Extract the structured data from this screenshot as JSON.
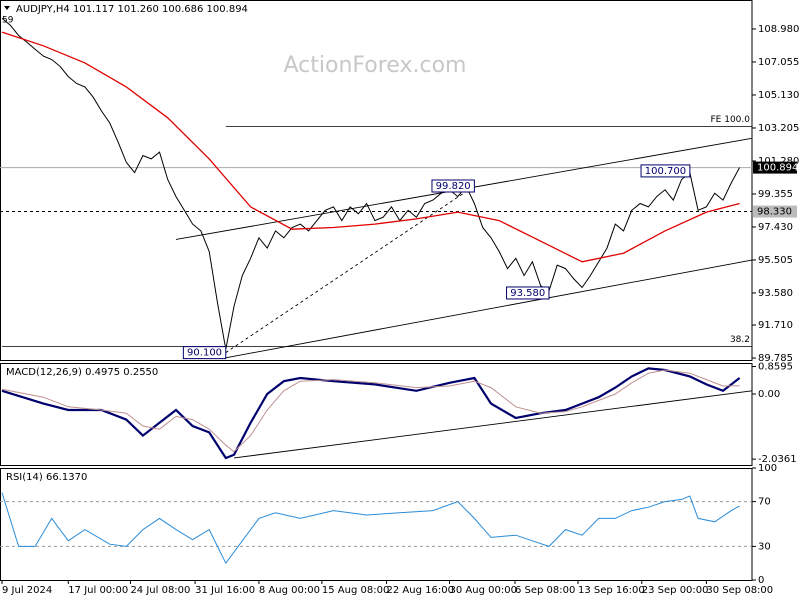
{
  "chart_data": [
    {
      "type": "line",
      "title": "AUDJPY,H4  101.117 101.260 100.686 100.894",
      "watermark": "ActionForex.com",
      "corner_tag": "59",
      "xlim": [
        0,
        90.5
      ],
      "ylim": [
        89.67,
        110.67
      ],
      "yticks": [
        {
          "value": 108.98,
          "label": "108.980"
        },
        107.055,
        {
          "value": 105.13,
          "label": "105.130"
        },
        103.205,
        {
          "value": 101.28,
          "label": "101.280"
        },
        99.355,
        {
          "value": 97.43,
          "label": "97.430"
        },
        95.505,
        {
          "value": 93.58,
          "label": "93.580"
        },
        {
          "value": 91.71,
          "label": "91.710"
        },
        89.785
      ],
      "series": [
        {
          "name": "AUDJPY",
          "color": "#000000",
          "values": [
            109.6,
            109.2,
            108.6,
            108.2,
            107.8,
            107.4,
            107.2,
            106.8,
            106.2,
            105.8,
            105.6,
            105.0,
            104.2,
            103.5,
            102.4,
            101.2,
            100.6,
            101.6,
            101.4,
            101.8,
            100.2,
            99.2,
            98.4,
            97.6,
            97.2,
            96.0,
            93.0,
            90.3,
            92.8,
            94.6,
            95.6,
            96.8,
            96.2,
            97.2,
            96.8,
            97.4,
            97.6,
            97.2,
            97.8,
            98.4,
            98.6,
            97.8,
            98.6,
            98.2,
            98.8,
            97.8,
            98.0,
            98.6,
            97.8,
            98.4,
            98.0,
            98.8,
            99.0,
            99.4,
            99.6,
            99.2,
            99.8,
            98.8,
            97.4,
            96.8,
            96.0,
            95.0,
            95.6,
            94.6,
            95.4,
            94.0,
            93.7,
            95.2,
            95.0,
            94.4,
            93.9,
            94.6,
            95.4,
            96.2,
            97.6,
            97.2,
            98.4,
            98.8,
            98.6,
            99.2,
            99.6,
            99.0,
            100.2,
            100.6,
            98.4,
            98.6,
            99.4,
            99.0,
            100.0,
            100.9
          ]
        },
        {
          "name": "MA",
          "color": "#e00000",
          "x": [
            0,
            5,
            10,
            15,
            20,
            25,
            30,
            35,
            40,
            45,
            50,
            55,
            60,
            65,
            70,
            75,
            80,
            85,
            89
          ],
          "values": [
            108.8,
            108.0,
            107.0,
            105.6,
            103.8,
            101.4,
            98.6,
            97.3,
            97.4,
            97.6,
            97.9,
            98.3,
            97.8,
            96.6,
            95.4,
            95.9,
            97.2,
            98.3,
            98.8
          ]
        }
      ],
      "trendlines": [
        {
          "x": [
            21,
            90.5
          ],
          "y": [
            96.7,
            102.6
          ]
        },
        {
          "x": [
            27,
            90.5
          ],
          "y": [
            89.8,
            95.5
          ]
        },
        {
          "x": [
            27,
            57
          ],
          "y": [
            90.1,
            99.82
          ],
          "dashed": true
        }
      ],
      "levels": [
        {
          "label": "FE 100.0",
          "value": 103.3,
          "x": [
            27,
            90.5
          ]
        },
        {
          "label": "38.2",
          "value": 90.45,
          "x": [
            0,
            90.5
          ]
        }
      ],
      "price_tags": [
        {
          "value": 100.894,
          "dashed": false
        },
        {
          "value": {
            "value": 98.33,
            "label": "98.330"
          },
          "dashed": true
        }
      ],
      "annotations": [
        {
          "label": "90.100",
          "value": 90.1,
          "x": 27
        },
        {
          "label": "99.820",
          "value": 99.82,
          "x": 57
        },
        {
          "label": "93.580",
          "value": 93.58,
          "x": 66
        },
        {
          "label": "100.700",
          "value": 100.7,
          "x": 83
        }
      ]
    },
    {
      "type": "line",
      "title": "MACD(12,26,9) 0.4975 0.2550",
      "xlim": [
        0,
        90.5
      ],
      "ylim": [
        -2.22,
        0.97
      ],
      "yticks": [
        0.8595,
        {
          "value": 0,
          "label": "0.00"
        },
        -2.0361
      ],
      "series": [
        {
          "name": "MACD",
          "color": "#00006e",
          "x": [
            0,
            5,
            8,
            12,
            15,
            17,
            19,
            21,
            23,
            25,
            27,
            28,
            30,
            32,
            34,
            36,
            40,
            45,
            50,
            54,
            57,
            59,
            62,
            65,
            68,
            70,
            72,
            74,
            76,
            78,
            80,
            83,
            85,
            87,
            89
          ],
          "values": [
            0.1,
            -0.3,
            -0.5,
            -0.5,
            -0.8,
            -1.3,
            -0.9,
            -0.5,
            -1.0,
            -1.2,
            -2.0,
            -1.9,
            -0.9,
            0.0,
            0.4,
            0.5,
            0.4,
            0.3,
            0.1,
            0.35,
            0.5,
            -0.3,
            -0.75,
            -0.6,
            -0.5,
            -0.3,
            -0.1,
            0.2,
            0.55,
            0.8,
            0.75,
            0.55,
            0.3,
            0.1,
            0.5
          ]
        },
        {
          "name": "Signal",
          "color": "#c09090",
          "x": [
            0,
            5,
            8,
            12,
            15,
            17,
            19,
            21,
            23,
            25,
            27,
            28,
            30,
            32,
            34,
            36,
            40,
            45,
            50,
            54,
            57,
            59,
            62,
            65,
            68,
            70,
            72,
            74,
            76,
            78,
            80,
            83,
            85,
            87,
            89
          ],
          "values": [
            0.15,
            -0.1,
            -0.4,
            -0.5,
            -0.6,
            -1.0,
            -1.1,
            -0.7,
            -0.8,
            -1.1,
            -1.6,
            -1.8,
            -1.3,
            -0.5,
            0.1,
            0.4,
            0.45,
            0.35,
            0.2,
            0.25,
            0.4,
            0.2,
            -0.4,
            -0.6,
            -0.55,
            -0.4,
            -0.2,
            0.0,
            0.35,
            0.65,
            0.75,
            0.65,
            0.45,
            0.25,
            0.26
          ]
        }
      ],
      "trendlines": [
        {
          "x": [
            28,
            90.5
          ],
          "y": [
            -2.0,
            0.1
          ]
        }
      ]
    },
    {
      "type": "line",
      "title": "RSI(14) 66.1370",
      "xlim": [
        0,
        90.5
      ],
      "ylim": [
        0,
        100
      ],
      "yticks": [
        100,
        70,
        30,
        0
      ],
      "levels_dashed": [
        70,
        30
      ],
      "xticks": [
        {
          "value": 0,
          "label": "9 Jul 2024"
        },
        {
          "value": 8,
          "label": "17 Jul 00:00"
        },
        {
          "value": 15.5,
          "label": "24 Jul 08:00"
        },
        {
          "value": 23.3,
          "label": "31 Jul 16:00"
        },
        {
          "value": 31,
          "label": "8 Aug 00:00"
        },
        {
          "value": 38.6,
          "label": "15 Aug 08:00"
        },
        {
          "value": 46.4,
          "label": "22 Aug 16:00"
        },
        {
          "value": 54,
          "label": "30 Aug 00:00"
        },
        {
          "value": 61.9,
          "label": "6 Sep 08:00"
        },
        {
          "value": 69.5,
          "label": "13 Sep 16:00"
        },
        {
          "value": 77.2,
          "label": "23 Sep 00:00"
        },
        {
          "value": 85,
          "label": "30 Sep 08:00"
        }
      ],
      "series": [
        {
          "name": "RSI",
          "color": "#2a8cd8",
          "x": [
            0,
            2,
            4,
            6,
            8,
            10,
            13,
            15,
            17,
            19,
            21,
            23,
            25,
            27,
            29,
            31,
            33,
            36,
            40,
            44,
            48,
            52,
            55,
            57,
            59,
            62,
            64,
            66,
            68,
            70,
            72,
            74,
            76,
            78,
            80,
            82,
            83,
            84,
            86,
            88,
            89
          ],
          "values": [
            78,
            30,
            30,
            55,
            35,
            45,
            32,
            30,
            45,
            55,
            45,
            36,
            45,
            15,
            35,
            55,
            60,
            55,
            62,
            58,
            60,
            62,
            70,
            55,
            38,
            40,
            35,
            30,
            45,
            40,
            55,
            55,
            62,
            65,
            70,
            72,
            75,
            55,
            52,
            62,
            66.137
          ]
        }
      ]
    }
  ]
}
